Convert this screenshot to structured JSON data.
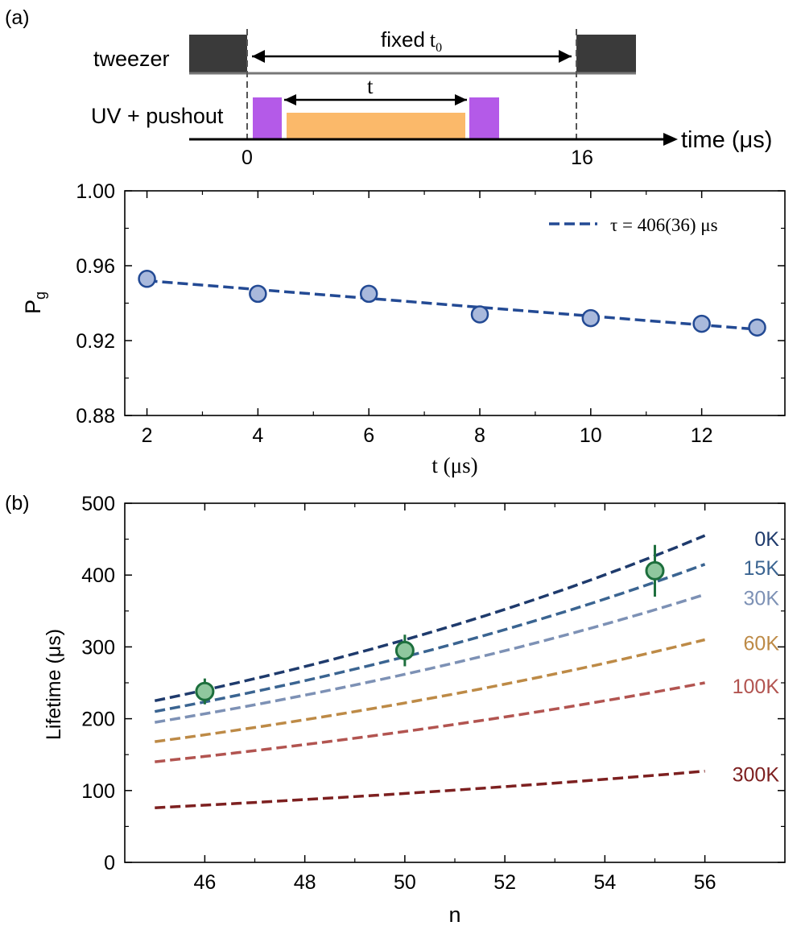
{
  "panel_a_label": "(a)",
  "panel_b_label": "(b)",
  "timing": {
    "tweezer_label": "tweezer",
    "uv_label": "UV + pushout",
    "fixed_label": "fixed",
    "fixed_symbol": "t",
    "fixed_subscript": "0",
    "t_label": "t",
    "time_axis_label": "time (μs)",
    "tick_zero": "0",
    "tick_end": "16",
    "colors": {
      "tweezer": "#3a3a3a",
      "uv": "#b45ae8",
      "pushout": "#fbb96a",
      "axis": "#000000"
    }
  },
  "chart_data": [
    {
      "type": "scatter",
      "title": "",
      "xlabel": "t (μs)",
      "ylabel": "P",
      "ylabel_subscript": "g",
      "xlim": [
        1.6,
        13.5
      ],
      "ylim": [
        0.88,
        1.0
      ],
      "xticks": [
        2,
        4,
        6,
        8,
        10,
        12
      ],
      "xticks_text": [
        "2",
        "4",
        "6",
        "8",
        "10",
        "12"
      ],
      "yticks": [
        0.88,
        0.92,
        0.96,
        1.0
      ],
      "yticks_text": [
        "0.88",
        "0.92",
        "0.96",
        "1.00"
      ],
      "x": [
        2,
        4,
        6,
        8,
        10,
        12,
        13
      ],
      "y": [
        0.953,
        0.945,
        0.945,
        0.934,
        0.932,
        0.929,
        0.927
      ],
      "fit": {
        "x": [
          2,
          13
        ],
        "y": [
          0.952,
          0.926
        ]
      },
      "legend": "τ = 406(36) μs",
      "legend_position": "top-right",
      "marker_color": "#a9b9dc",
      "line_color": "#234a94"
    },
    {
      "type": "line",
      "title": "",
      "xlabel": "n",
      "ylabel": "Lifetime (μs)",
      "xlim": [
        44.4,
        57.6
      ],
      "ylim": [
        0,
        500
      ],
      "xticks": [
        46,
        48,
        50,
        52,
        54,
        56
      ],
      "xticks_text": [
        "46",
        "48",
        "50",
        "52",
        "54",
        "56"
      ],
      "yticks": [
        0,
        100,
        200,
        300,
        400,
        500
      ],
      "yticks_text": [
        "0",
        "100",
        "200",
        "300",
        "400",
        "500"
      ],
      "series": [
        {
          "name": "0K",
          "color": "#1e3a6c",
          "x": [
            45,
            56
          ],
          "y": [
            225,
            455
          ]
        },
        {
          "name": "15K",
          "color": "#3a6491",
          "x": [
            45,
            56
          ],
          "y": [
            210,
            415
          ]
        },
        {
          "name": "30K",
          "color": "#7d91b5",
          "x": [
            45,
            56
          ],
          "y": [
            195,
            373
          ]
        },
        {
          "name": "60K",
          "color": "#bd8a46",
          "x": [
            45,
            56
          ],
          "y": [
            168,
            310
          ]
        },
        {
          "name": "100K",
          "color": "#b25450",
          "x": [
            45,
            56
          ],
          "y": [
            140,
            250
          ]
        },
        {
          "name": "300K",
          "color": "#7d2020",
          "x": [
            45,
            56
          ],
          "y": [
            76,
            127
          ]
        }
      ],
      "points": {
        "x": [
          46,
          50,
          55
        ],
        "y": [
          238,
          295,
          406
        ],
        "err": [
          18,
          22,
          36
        ],
        "color": "#1d6f3d",
        "fill": "#8fc79e"
      }
    }
  ]
}
